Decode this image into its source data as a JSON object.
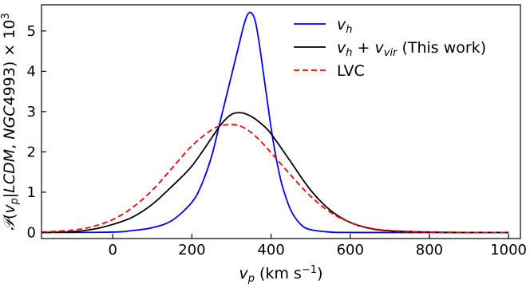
{
  "chart_data": {
    "type": "line",
    "xlabel": "v_p (km s^-1)",
    "ylabel": "P(v_p|LCDM, NGC4993) × 10^3",
    "xlim": [
      -180,
      1030
    ],
    "ylim": [
      -0.15,
      5.65
    ],
    "xticks": [
      0,
      200,
      400,
      600,
      800,
      1000
    ],
    "yticks": [
      0,
      1,
      2,
      3,
      4,
      5
    ],
    "xtick_labels": [
      "0",
      "200",
      "400",
      "600",
      "800",
      "1000"
    ],
    "ytick_labels": [
      "0",
      "1",
      "2",
      "3",
      "4",
      "5"
    ],
    "grid": false,
    "legend_position": "top-right",
    "series": [
      {
        "name": "v_h",
        "color": "#0000ff",
        "style": "solid",
        "x": [
          -180,
          0,
          50,
          100,
          150,
          200,
          225,
          250,
          270,
          290,
          300,
          310,
          320,
          330,
          340,
          350,
          360,
          370,
          380,
          390,
          400,
          410,
          420,
          430,
          450,
          475,
          500,
          550,
          600,
          650,
          700,
          800,
          900,
          1000
        ],
        "y": [
          0,
          0.01,
          0.05,
          0.12,
          0.3,
          0.75,
          1.2,
          1.9,
          2.7,
          3.5,
          3.9,
          4.3,
          4.7,
          5.1,
          5.4,
          5.45,
          5.25,
          4.7,
          4.0,
          3.3,
          2.6,
          2.0,
          1.5,
          1.1,
          0.55,
          0.2,
          0.07,
          0.01,
          0,
          0,
          0,
          0,
          0,
          0
        ]
      },
      {
        "name": "v_h + v_vir (This work)",
        "color": "#000000",
        "style": "solid",
        "x": [
          -180,
          -100,
          -50,
          0,
          50,
          100,
          150,
          200,
          250,
          275,
          300,
          325,
          350,
          375,
          400,
          450,
          500,
          550,
          600,
          650,
          700,
          800,
          900,
          1000
        ],
        "y": [
          0,
          0.02,
          0.08,
          0.2,
          0.38,
          0.7,
          1.15,
          1.65,
          2.35,
          2.7,
          2.93,
          2.97,
          2.88,
          2.7,
          2.45,
          1.75,
          1.05,
          0.55,
          0.25,
          0.1,
          0.04,
          0.01,
          0,
          0
        ],
        "line_width": 1.8
      },
      {
        "name": "LVC",
        "color": "#ff0000",
        "style": "dashed",
        "x": [
          -180,
          -100,
          -50,
          0,
          50,
          100,
          150,
          200,
          250,
          275,
          300,
          325,
          350,
          375,
          400,
          450,
          500,
          550,
          600,
          650,
          700,
          800,
          900,
          1000
        ],
        "y": [
          0.01,
          0.06,
          0.15,
          0.32,
          0.62,
          1.05,
          1.6,
          2.15,
          2.55,
          2.65,
          2.68,
          2.63,
          2.48,
          2.25,
          1.98,
          1.42,
          0.9,
          0.5,
          0.25,
          0.11,
          0.05,
          0.01,
          0,
          0
        ]
      }
    ]
  }
}
